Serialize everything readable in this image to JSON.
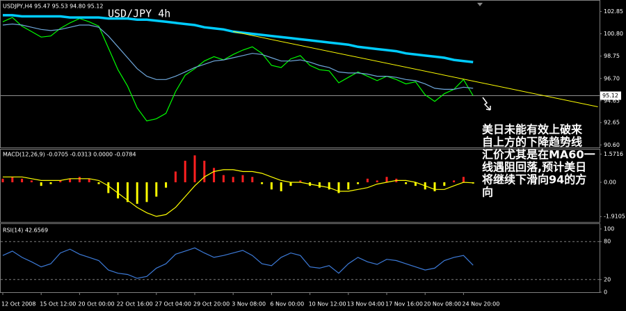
{
  "chart_data": [
    {
      "type": "line",
      "header": "USDJPY,H4  95.47 95.53 94.80 95.12",
      "title": "USD/JPY 4h",
      "ylim": [
        90.3,
        103.9
      ],
      "yticks": [
        102.85,
        {
          "value": 100.8,
          "label": "100.80"
        },
        98.75,
        {
          "value": 96.7,
          "label": "96.70"
        },
        94.65,
        92.65,
        {
          "value": 90.6,
          "label": "90.60"
        }
      ],
      "current_price": 95.12,
      "series": [
        {
          "color": "#00ff00",
          "values": [
            101.9,
            102.3,
            101.5,
            101.0,
            100.5,
            100.6,
            101.3,
            101.8,
            102.2,
            101.9,
            101.5,
            99.5,
            97.5,
            96.0,
            94.0,
            92.8,
            93.0,
            93.5,
            95.5,
            97.0,
            97.6,
            98.3,
            98.7,
            98.4,
            98.9,
            99.3,
            99.6,
            99.0,
            97.9,
            97.7,
            98.5,
            98.8,
            97.9,
            97.5,
            97.4,
            96.3,
            96.8,
            97.3,
            96.9,
            96.5,
            96.9,
            96.6,
            96.2,
            96.4,
            95.2,
            94.6,
            95.3,
            95.7,
            96.6,
            95.12,
            null,
            null
          ]
        },
        {
          "color": "#6fa8dc",
          "values": [
            101.6,
            101.7,
            101.6,
            101.4,
            101.2,
            101.1,
            101.2,
            101.4,
            101.6,
            101.6,
            101.4,
            100.6,
            99.6,
            98.6,
            97.6,
            96.9,
            96.6,
            96.6,
            96.9,
            97.3,
            97.7,
            98.0,
            98.3,
            98.4,
            98.6,
            98.8,
            99.0,
            98.9,
            98.6,
            98.3,
            98.3,
            98.4,
            98.2,
            97.9,
            97.7,
            97.3,
            97.2,
            97.2,
            97.1,
            96.9,
            96.9,
            96.8,
            96.6,
            96.5,
            96.2,
            95.8,
            95.7,
            95.7,
            95.9,
            95.8,
            null,
            null
          ]
        },
        {
          "color": "#00ccff",
          "values": [
            102.5,
            102.5,
            102.4,
            102.4,
            102.4,
            102.4,
            102.4,
            102.3,
            102.3,
            102.3,
            102.3,
            102.2,
            102.2,
            102.2,
            102.1,
            102.1,
            102.0,
            101.9,
            101.8,
            101.7,
            101.6,
            101.4,
            101.3,
            101.2,
            101.0,
            100.9,
            100.8,
            100.7,
            100.6,
            100.5,
            100.4,
            100.3,
            100.2,
            100.1,
            100.0,
            99.9,
            99.8,
            99.6,
            99.5,
            99.4,
            99.3,
            99.2,
            99.0,
            98.9,
            98.8,
            98.7,
            98.6,
            98.4,
            98.3,
            98.2,
            null,
            null
          ]
        }
      ],
      "trendline": {
        "color": "#ffff00",
        "x": [
          24,
          62
        ],
        "values": [
          101.0,
          94.1
        ]
      },
      "annotation": [
        "美日未能有效上破来",
        "自上方的下降趋势线",
        "汇价尤其是在MA60一",
        "线遇阻回落,预计美日",
        "将继续下滑向94的方",
        "向"
      ]
    },
    {
      "type": "bar",
      "header": "MACD(12,26,9) -0.0705 -0.0313 0.0000 -0.0784",
      "ylim": [
        -2.25,
        1.9
      ],
      "yticks": [
        1.5716,
        {
          "value": 0,
          "label": "0.00"
        },
        -1.9105
      ],
      "positive_color": "#ff2020",
      "negative_color": "#ffff00",
      "values": [
        0.2,
        0.3,
        0.2,
        0.1,
        -0.2,
        -0.1,
        0.1,
        0.2,
        0.3,
        0.2,
        -0.1,
        -0.6,
        -0.9,
        -1.1,
        -1.2,
        -1.1,
        -0.8,
        -0.3,
        0.6,
        1.2,
        1.5,
        1.2,
        0.8,
        0.4,
        0.3,
        0.4,
        0.3,
        -0.1,
        -0.4,
        -0.5,
        -0.2,
        0.1,
        -0.2,
        -0.3,
        -0.4,
        -0.6,
        -0.4,
        -0.1,
        0.2,
        0.1,
        0.3,
        0.2,
        -0.1,
        -0.2,
        -0.4,
        -0.5,
        -0.2,
        0.1,
        0.3,
        -0.07,
        null,
        null
      ],
      "series": [
        {
          "color": "#ffff00",
          "values": [
            0.3,
            0.3,
            0.3,
            0.2,
            0.1,
            0.1,
            0.1,
            0.2,
            0.2,
            0.2,
            0.1,
            -0.2,
            -0.6,
            -1.0,
            -1.4,
            -1.7,
            -1.9,
            -1.8,
            -1.4,
            -0.8,
            -0.2,
            0.3,
            0.6,
            0.7,
            0.7,
            0.6,
            0.6,
            0.5,
            0.3,
            0.1,
            0.0,
            0.0,
            -0.1,
            -0.2,
            -0.3,
            -0.5,
            -0.5,
            -0.4,
            -0.3,
            -0.1,
            0.0,
            0.1,
            0.1,
            0.0,
            -0.2,
            -0.4,
            -0.4,
            -0.2,
            0.0,
            -0.03,
            null,
            null
          ]
        }
      ]
    },
    {
      "type": "line",
      "header": "RSI(14) 42.6569",
      "ylim": [
        0,
        100
      ],
      "yticks": [
        100,
        80,
        20,
        0
      ],
      "grid": true,
      "categories": [
        "12 Oct 2008",
        null,
        null,
        null,
        "15 Oct 12:00",
        null,
        null,
        null,
        "20 Oct 00:00",
        null,
        null,
        null,
        "22 Oct 16:00",
        null,
        null,
        null,
        "27 Oct 04:00",
        null,
        null,
        null,
        "29 Oct 20:00",
        null,
        null,
        null,
        "3 Nov 08:00",
        null,
        null,
        null,
        "6 Nov 00:00",
        null,
        null,
        null,
        "10 Nov 12:00",
        null,
        null,
        null,
        "13 Nov 04:00",
        null,
        null,
        null,
        "17 Nov 16:00",
        null,
        null,
        null,
        "20 Nov 08:00",
        null,
        null,
        null,
        "24 Nov 20:00",
        null,
        null,
        null
      ],
      "series": [
        {
          "color": "#3d7bd9",
          "values": [
            58,
            65,
            55,
            48,
            40,
            45,
            62,
            68,
            60,
            55,
            50,
            35,
            30,
            28,
            22,
            25,
            38,
            45,
            60,
            65,
            70,
            62,
            55,
            58,
            62,
            66,
            58,
            45,
            42,
            55,
            62,
            58,
            40,
            38,
            42,
            30,
            45,
            55,
            48,
            44,
            52,
            50,
            45,
            40,
            35,
            38,
            50,
            55,
            58,
            42.6569,
            null,
            null
          ]
        }
      ]
    }
  ]
}
